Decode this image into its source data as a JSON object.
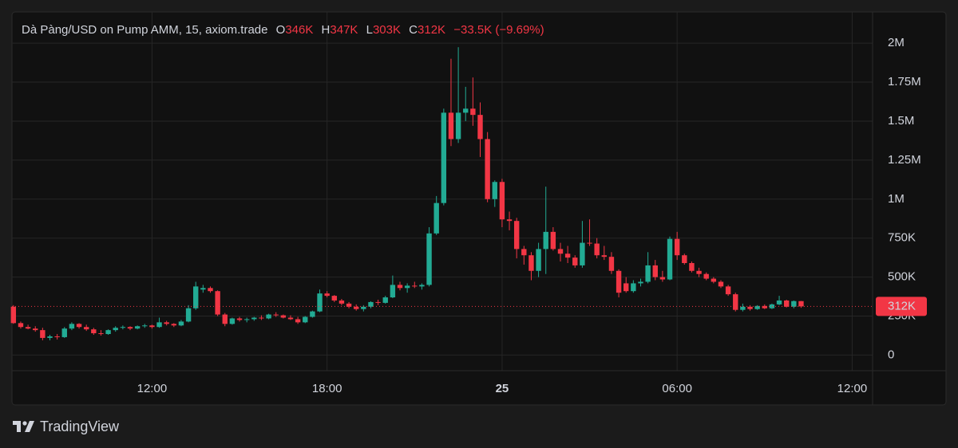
{
  "chart_data": {
    "type": "candlestick",
    "title": "Dà Pàng/USD on Pump AMM, 15, axiom.trade",
    "ohlc_legend": {
      "open_label": "O",
      "open": "346K",
      "high_label": "H",
      "high": "347K",
      "low_label": "L",
      "low": "303K",
      "close_label": "C",
      "close": "312K",
      "change": "−33.5K (−9.69%)"
    },
    "up_color": "#22ab94",
    "down_color": "#f23645",
    "x": [
      7.25,
      7.5,
      7.75,
      8,
      8.25,
      8.5,
      8.75,
      9,
      9.25,
      9.5,
      9.75,
      10,
      10.25,
      10.5,
      10.75,
      11,
      11.25,
      11.5,
      11.75,
      12,
      12.25,
      12.5,
      12.75,
      13,
      13.25,
      13.5,
      13.75,
      14,
      14.25,
      14.5,
      14.75,
      15,
      15.25,
      15.5,
      15.75,
      16,
      16.25,
      16.5,
      16.75,
      17,
      17.25,
      17.5,
      17.75,
      18,
      18.25,
      18.5,
      18.75,
      19,
      19.25,
      19.5,
      19.75,
      20,
      20.25,
      20.5,
      20.75,
      21,
      21.25,
      21.5,
      21.75,
      22,
      22.25,
      22.5,
      22.75,
      23,
      23.25,
      23.5,
      23.75,
      24,
      24.25,
      24.5,
      24.75,
      25,
      25.25,
      25.5,
      25.75,
      26,
      26.25,
      26.5,
      26.75,
      27,
      27.25,
      27.5,
      27.75,
      28,
      28.25,
      28.5,
      28.75,
      29,
      29.25,
      29.5,
      29.75,
      30,
      30.25,
      30.5,
      30.75,
      31,
      31.25,
      31.5,
      31.75,
      32,
      32.25,
      32.5,
      32.75,
      33,
      33.25,
      33.5,
      33.75,
      34,
      34.25
    ],
    "open": [
      310000.0,
      205000.0,
      180000.0,
      170000.0,
      160000.0,
      110000.0,
      120000.0,
      115000.0,
      170000.0,
      200000.0,
      180000.0,
      165000.0,
      140000.0,
      135000.0,
      160000.0,
      175000.0,
      180000.0,
      170000.0,
      185000.0,
      190000.0,
      180000.0,
      210000.0,
      200000.0,
      190000.0,
      215000.0,
      300000.0,
      420000.0,
      430000.0,
      410000.0,
      260000.0,
      200000.0,
      235000.0,
      225000.0,
      230000.0,
      240000.0,
      235000.0,
      260000.0,
      255000.0,
      240000.0,
      230000.0,
      210000.0,
      245000.0,
      280000.0,
      395000.0,
      380000.0,
      350000.0,
      330000.0,
      310000.0,
      295000.0,
      310000.0,
      340000.0,
      335000.0,
      370000.0,
      450000.0,
      430000.0,
      445000.0,
      440000.0,
      450000.0,
      780000.0,
      975000.0,
      1554000.0,
      1385000.0,
      1554000.0,
      1580000.0,
      1540000.0,
      1385000.0,
      1000000.0,
      1110000.0,
      870000.0,
      860000.0,
      680000.0,
      640000.0,
      540000.0,
      680000.0,
      790000.0,
      680000.0,
      650000.0,
      625000.0,
      575000.0,
      720000.0,
      715000.0,
      640000.0,
      630000.0,
      540000.0,
      460000.0,
      410000.0,
      460000.0,
      470000.0,
      575000.0,
      500000.0,
      485000.0,
      745000.0,
      640000.0,
      590000.0,
      540000.0,
      520000.0,
      490000.0,
      470000.0,
      440000.0,
      390000.0,
      290000.0,
      310000.0,
      295000.0,
      315000.0,
      300000.0,
      325000.0,
      350000.0,
      310000.0,
      346000.0
    ],
    "high": [
      320000.0,
      215000.0,
      195000.0,
      185000.0,
      175000.0,
      130000.0,
      135000.0,
      180000.0,
      210000.0,
      205000.0,
      195000.0,
      175000.0,
      160000.0,
      165000.0,
      185000.0,
      190000.0,
      185000.0,
      190000.0,
      200000.0,
      195000.0,
      240000.0,
      220000.0,
      205000.0,
      225000.0,
      320000.0,
      470000.0,
      450000.0,
      440000.0,
      415000.0,
      270000.0,
      240000.0,
      245000.0,
      240000.0,
      245000.0,
      255000.0,
      265000.0,
      275000.0,
      260000.0,
      255000.0,
      245000.0,
      250000.0,
      285000.0,
      420000.0,
      410000.0,
      385000.0,
      360000.0,
      340000.0,
      325000.0,
      320000.0,
      345000.0,
      355000.0,
      380000.0,
      510000.0,
      470000.0,
      460000.0,
      470000.0,
      460000.0,
      820000.0,
      1020000.0,
      1580000.0,
      1900000.0,
      1974000.0,
      1720000.0,
      1780000.0,
      1620000.0,
      1430000.0,
      1120000.0,
      1130000.0,
      920000.0,
      880000.0,
      700000.0,
      660000.0,
      720000.0,
      1080000.0,
      820000.0,
      720000.0,
      700000.0,
      640000.0,
      860000.0,
      870000.0,
      750000.0,
      700000.0,
      660000.0,
      550000.0,
      500000.0,
      480000.0,
      490000.0,
      660000.0,
      610000.0,
      540000.0,
      760000.0,
      790000.0,
      650000.0,
      600000.0,
      560000.0,
      530000.0,
      500000.0,
      480000.0,
      450000.0,
      400000.0,
      330000.0,
      320000.0,
      320000.0,
      325000.0,
      330000.0,
      380000.0,
      355000.0,
      350000.0,
      347000.0
    ],
    "low": [
      200000.0,
      170000.0,
      165000.0,
      150000.0,
      95000.0,
      95000.0,
      100000.0,
      110000.0,
      160000.0,
      170000.0,
      155000.0,
      130000.0,
      125000.0,
      130000.0,
      150000.0,
      165000.0,
      160000.0,
      165000.0,
      175000.0,
      170000.0,
      175000.0,
      190000.0,
      180000.0,
      185000.0,
      210000.0,
      290000.0,
      400000.0,
      400000.0,
      250000.0,
      185000.0,
      195000.0,
      215000.0,
      210000.0,
      220000.0,
      225000.0,
      230000.0,
      245000.0,
      235000.0,
      225000.0,
      200000.0,
      205000.0,
      240000.0,
      275000.0,
      370000.0,
      340000.0,
      320000.0,
      300000.0,
      285000.0,
      280000.0,
      300000.0,
      320000.0,
      330000.0,
      365000.0,
      415000.0,
      400000.0,
      430000.0,
      420000.0,
      440000.0,
      770000.0,
      960000.0,
      1340000.0,
      1360000.0,
      1500000.0,
      1470000.0,
      1270000.0,
      980000.0,
      950000.0,
      820000.0,
      800000.0,
      620000.0,
      580000.0,
      480000.0,
      500000.0,
      520000.0,
      670000.0,
      600000.0,
      590000.0,
      560000.0,
      560000.0,
      700000.0,
      620000.0,
      610000.0,
      520000.0,
      370000.0,
      400000.0,
      400000.0,
      440000.0,
      460000.0,
      480000.0,
      470000.0,
      480000.0,
      610000.0,
      580000.0,
      530000.0,
      500000.0,
      480000.0,
      460000.0,
      430000.0,
      380000.0,
      280000.0,
      280000.0,
      285000.0,
      290000.0,
      295000.0,
      295000.0,
      320000.0,
      305000.0,
      300000.0,
      303000.0
    ],
    "close": [
      205000.0,
      180000.0,
      170000.0,
      160000.0,
      110000.0,
      120000.0,
      115000.0,
      170000.0,
      200000.0,
      180000.0,
      165000.0,
      140000.0,
      135000.0,
      160000.0,
      175000.0,
      180000.0,
      170000.0,
      185000.0,
      190000.0,
      180000.0,
      210000.0,
      200000.0,
      190000.0,
      215000.0,
      300000.0,
      440000.0,
      430000.0,
      410000.0,
      260000.0,
      200000.0,
      235000.0,
      225000.0,
      230000.0,
      240000.0,
      235000.0,
      260000.0,
      255000.0,
      240000.0,
      230000.0,
      210000.0,
      245000.0,
      280000.0,
      395000.0,
      380000.0,
      350000.0,
      330000.0,
      310000.0,
      295000.0,
      310000.0,
      340000.0,
      335000.0,
      370000.0,
      450000.0,
      430000.0,
      445000.0,
      440000.0,
      450000.0,
      780000.0,
      975000.0,
      1554000.0,
      1385000.0,
      1554000.0,
      1580000.0,
      1540000.0,
      1385000.0,
      1000000.0,
      1110000.0,
      870000.0,
      860000.0,
      680000.0,
      640000.0,
      540000.0,
      680000.0,
      790000.0,
      680000.0,
      650000.0,
      625000.0,
      575000.0,
      720000.0,
      715000.0,
      640000.0,
      630000.0,
      540000.0,
      400000.0,
      410000.0,
      460000.0,
      470000.0,
      575000.0,
      500000.0,
      485000.0,
      745000.0,
      640000.0,
      590000.0,
      540000.0,
      520000.0,
      490000.0,
      470000.0,
      440000.0,
      390000.0,
      290000.0,
      310000.0,
      295000.0,
      315000.0,
      300000.0,
      325000.0,
      350000.0,
      310000.0,
      346000.0,
      312000.0
    ],
    "last_price": {
      "value": 312000,
      "label": "312K"
    },
    "xlim": [
      7.2,
      36.7
    ],
    "xticks": [
      {
        "value": 12,
        "label": "12:00"
      },
      {
        "value": 18,
        "label": "18:00"
      },
      {
        "value": 24,
        "label": "25"
      },
      {
        "value": 30,
        "label": "06:00"
      },
      {
        "value": 36,
        "label": "12:00"
      }
    ],
    "ylim": [
      -100000,
      2200000
    ],
    "yticks": [
      0,
      {
        "value": 250000,
        "label": "250K"
      },
      {
        "value": 500000,
        "label": "500K"
      },
      {
        "value": 750000,
        "label": "750K"
      },
      {
        "value": 1000000,
        "label": "1M"
      },
      {
        "value": 1250000,
        "label": "1.25M"
      },
      {
        "value": 1500000,
        "label": "1.5M"
      },
      {
        "value": 1750000,
        "label": "1.75M"
      },
      {
        "value": 2000000,
        "label": "2M"
      }
    ],
    "grid": true,
    "brand": "TradingView"
  }
}
